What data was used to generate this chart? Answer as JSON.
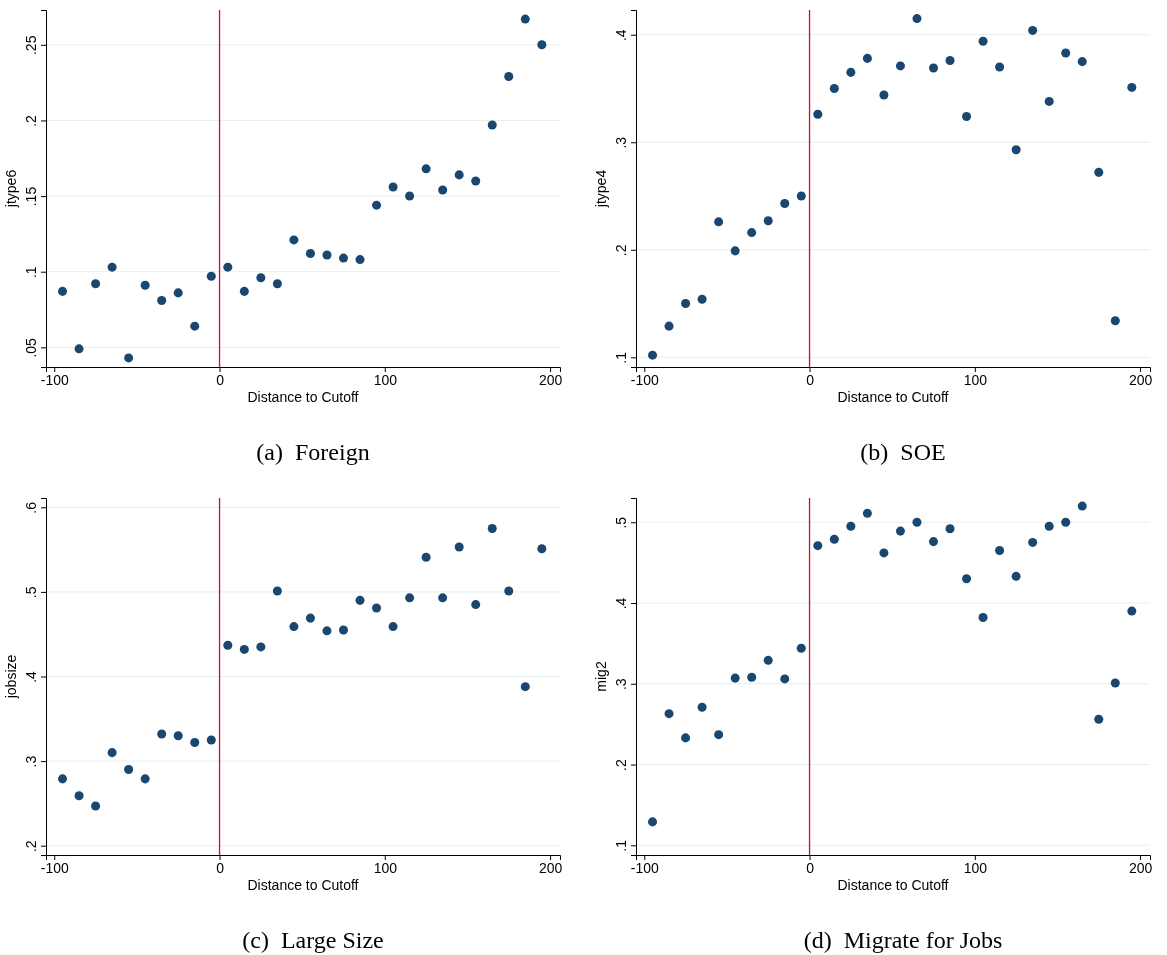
{
  "chart_data": [
    {
      "type": "scatter",
      "title": "(a)  Foreign",
      "xlabel": "Distance to Cutoff",
      "ylabel": "jtype6",
      "marker": "circle",
      "grid": "y",
      "x": [
        -95,
        -85,
        -75,
        -65,
        -55,
        -45,
        -35,
        -25,
        -15,
        -5,
        5,
        15,
        25,
        35,
        45,
        55,
        65,
        75,
        85,
        95,
        105,
        115,
        125,
        135,
        145,
        155,
        165,
        175,
        185,
        195
      ],
      "xlim": [
        -105,
        206
      ],
      "xticks": [
        -100,
        0,
        100,
        200
      ],
      "ylim": [
        0.037,
        0.273
      ],
      "yticks": [
        {
          "value": 0.05,
          "label": ".05"
        },
        {
          "value": 0.1,
          "label": ".1"
        },
        {
          "value": 0.15,
          "label": ".15"
        },
        {
          "value": 0.2,
          "label": ".2"
        },
        {
          "value": 0.25,
          "label": ".25"
        }
      ],
      "ref_lines": [
        {
          "axis": "x",
          "value": 0,
          "color": "#c8102e"
        }
      ],
      "series": [
        {
          "color": "#1a476f",
          "values": [
            0.087,
            0.049,
            0.092,
            0.103,
            0.043,
            0.091,
            0.081,
            0.086,
            0.064,
            0.097,
            0.103,
            0.087,
            0.096,
            0.092,
            0.121,
            0.112,
            0.111,
            0.109,
            0.108,
            0.144,
            0.156,
            0.15,
            0.168,
            0.154,
            0.164,
            0.16,
            0.197,
            0.229,
            0.267,
            0.25
          ]
        }
      ]
    },
    {
      "type": "scatter",
      "title": "(b)  SOE",
      "xlabel": "Distance to Cutoff",
      "ylabel": "jtype4",
      "marker": "circle",
      "grid": "y",
      "x": [
        -95,
        -85,
        -75,
        -65,
        -55,
        -45,
        -35,
        -25,
        -15,
        -5,
        5,
        15,
        25,
        35,
        45,
        55,
        65,
        75,
        85,
        95,
        105,
        115,
        125,
        135,
        145,
        155,
        165,
        175,
        185,
        195
      ],
      "xlim": [
        -105,
        206
      ],
      "xticks": [
        -100,
        0,
        100,
        200
      ],
      "ylim": [
        0.091,
        0.423
      ],
      "yticks": [
        {
          "value": 0.1,
          "label": ".1"
        },
        {
          "value": 0.2,
          "label": ".2"
        },
        {
          "value": 0.3,
          "label": ".3"
        },
        {
          "value": 0.4,
          "label": ".4"
        }
      ],
      "ref_lines": [
        {
          "axis": "x",
          "value": 0,
          "color": "#c8102e"
        }
      ],
      "series": [
        {
          "color": "#1a476f",
          "values": [
            0.102,
            0.129,
            0.15,
            0.154,
            0.226,
            0.199,
            0.216,
            0.227,
            0.243,
            0.25,
            0.326,
            0.35,
            0.365,
            0.378,
            0.344,
            0.371,
            0.415,
            0.369,
            0.376,
            0.324,
            0.394,
            0.37,
            0.293,
            0.404,
            0.338,
            0.383,
            0.375,
            0.272,
            0.134,
            0.351
          ]
        }
      ]
    },
    {
      "type": "scatter",
      "title": "(c)  Large Size",
      "xlabel": "Distance to Cutoff",
      "ylabel": "jobsize",
      "marker": "circle",
      "grid": "y",
      "x": [
        -95,
        -85,
        -75,
        -65,
        -55,
        -45,
        -35,
        -25,
        -15,
        -5,
        5,
        15,
        25,
        35,
        45,
        55,
        65,
        75,
        85,
        95,
        105,
        115,
        125,
        135,
        145,
        155,
        165,
        175,
        185,
        195
      ],
      "xlim": [
        -105,
        206
      ],
      "xticks": [
        -100,
        0,
        100,
        200
      ],
      "ylim": [
        0.189,
        0.611
      ],
      "yticks": [
        {
          "value": 0.2,
          "label": ".2"
        },
        {
          "value": 0.3,
          "label": ".3"
        },
        {
          "value": 0.4,
          "label": ".4"
        },
        {
          "value": 0.5,
          "label": ".5"
        },
        {
          "value": 0.6,
          "label": ".6"
        }
      ],
      "ref_lines": [
        {
          "axis": "x",
          "value": 0,
          "color": "#c8102e"
        }
      ],
      "series": [
        {
          "color": "#1a476f",
          "values": [
            0.279,
            0.259,
            0.247,
            0.31,
            0.29,
            0.279,
            0.332,
            0.33,
            0.322,
            0.325,
            0.437,
            0.432,
            0.435,
            0.501,
            0.459,
            0.469,
            0.454,
            0.455,
            0.49,
            0.481,
            0.459,
            0.493,
            0.541,
            0.493,
            0.553,
            0.485,
            0.575,
            0.501,
            0.388,
            0.551
          ]
        }
      ]
    },
    {
      "type": "scatter",
      "title": "(d)  Migrate for Jobs",
      "xlabel": "Distance to Cutoff",
      "ylabel": "mig2",
      "marker": "circle",
      "grid": "y",
      "x": [
        -95,
        -85,
        -75,
        -65,
        -55,
        -45,
        -35,
        -25,
        -15,
        -5,
        5,
        15,
        25,
        35,
        45,
        55,
        65,
        75,
        85,
        95,
        105,
        115,
        125,
        135,
        145,
        155,
        165,
        175,
        185,
        195
      ],
      "xlim": [
        -105,
        206
      ],
      "xticks": [
        -100,
        0,
        100,
        200
      ],
      "ylim": [
        0.088,
        0.53
      ],
      "yticks": [
        {
          "value": 0.1,
          "label": ".1"
        },
        {
          "value": 0.2,
          "label": ".2"
        },
        {
          "value": 0.3,
          "label": ".3"
        },
        {
          "value": 0.4,
          "label": ".4"
        },
        {
          "value": 0.5,
          "label": ".5"
        }
      ],
      "ref_lines": [
        {
          "axis": "x",
          "value": 0,
          "color": "#c8102e"
        }
      ],
      "series": [
        {
          "color": "#1a476f",
          "values": [
            0.129,
            0.263,
            0.233,
            0.271,
            0.237,
            0.307,
            0.308,
            0.329,
            0.306,
            0.344,
            0.471,
            0.479,
            0.495,
            0.511,
            0.462,
            0.489,
            0.5,
            0.476,
            0.492,
            0.43,
            0.382,
            0.465,
            0.433,
            0.475,
            0.495,
            0.5,
            0.52,
            0.256,
            0.301,
            0.39
          ]
        }
      ]
    }
  ]
}
